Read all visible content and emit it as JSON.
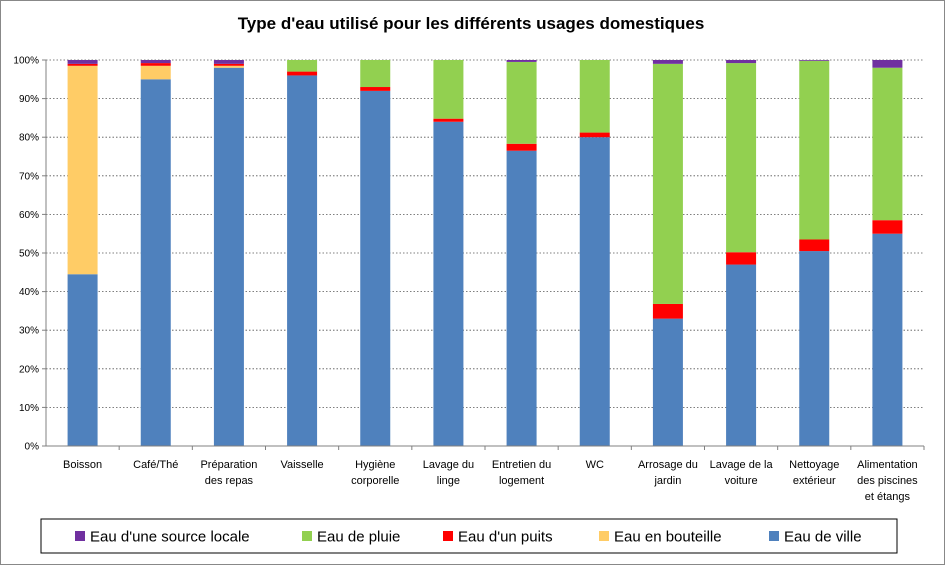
{
  "chart_data": {
    "type": "bar",
    "stacked": true,
    "title": "Type d'eau utilisé pour les différents usages domestiques",
    "categories": [
      "Boisson",
      "Café/Thé",
      "Préparation des repas",
      "Vaisselle",
      "Hygiène corporelle",
      "Lavage du linge",
      "Entretien du logement",
      "WC",
      "Arrosage du jardin",
      "Lavage de la voiture",
      "Nettoyage extérieur",
      "Alimentation des piscines et étangs"
    ],
    "category_lines": [
      [
        "Boisson"
      ],
      [
        "Café/Thé"
      ],
      [
        "Préparation",
        "des repas"
      ],
      [
        "Vaisselle"
      ],
      [
        "Hygiène",
        "corporelle"
      ],
      [
        "Lavage du",
        "linge"
      ],
      [
        "Entretien du",
        "logement"
      ],
      [
        "WC"
      ],
      [
        "Arrosage du",
        "jardin"
      ],
      [
        "Lavage de la",
        "voiture"
      ],
      [
        "Nettoyage",
        "extérieur"
      ],
      [
        "Alimentation",
        "des piscines",
        "et étangs"
      ]
    ],
    "series": [
      {
        "name": "Eau de ville",
        "color": "#4F81BD",
        "values": [
          44.5,
          95,
          98,
          96,
          92,
          84,
          76.5,
          80,
          33,
          47,
          50.5,
          55
        ]
      },
      {
        "name": "Eau en bouteille",
        "color": "#FFCC66",
        "values": [
          54,
          3.5,
          0.5,
          0,
          0,
          0,
          0,
          0,
          0,
          0,
          0,
          0
        ]
      },
      {
        "name": "Eau d'un puits",
        "color": "#FF0000",
        "values": [
          0.5,
          0.7,
          0.5,
          1,
          1,
          0.8,
          1.8,
          1.2,
          3.8,
          3.2,
          3,
          3.5
        ]
      },
      {
        "name": "Eau de pluie",
        "color": "#92D050",
        "values": [
          0,
          0,
          0,
          3,
          7,
          15.2,
          21.2,
          18.8,
          62.2,
          49,
          46.3,
          39.5
        ]
      },
      {
        "name": "Eau d'une source locale",
        "color": "#7030A0",
        "values": [
          1,
          0.8,
          1,
          0,
          0,
          0,
          0.5,
          0,
          1,
          0.8,
          0.2,
          2
        ]
      }
    ],
    "legend_order": [
      "Eau d'une source locale",
      "Eau de pluie",
      "Eau d'un puits",
      "Eau en bouteille",
      "Eau de ville"
    ],
    "ylim": [
      0,
      100
    ],
    "yticks": [
      "0%",
      "10%",
      "20%",
      "30%",
      "40%",
      "50%",
      "60%",
      "70%",
      "80%",
      "90%",
      "100%"
    ],
    "grid": true,
    "legend_position": "bottom",
    "xlabel": "",
    "ylabel": ""
  }
}
